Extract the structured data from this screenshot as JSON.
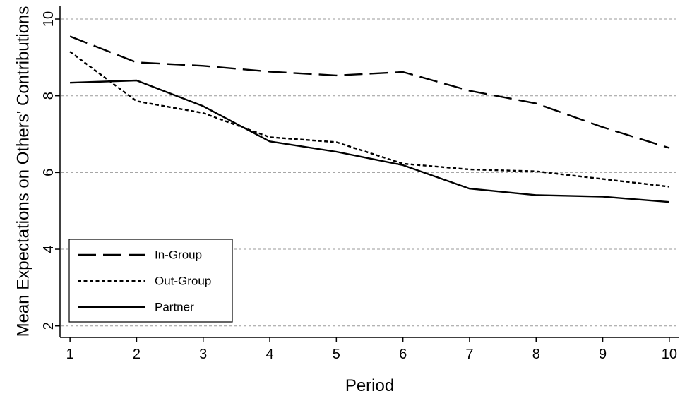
{
  "chart_data": {
    "type": "line",
    "title": "",
    "xlabel": "Period",
    "ylabel": "Mean Expectations on Others' Contributions",
    "x": [
      1,
      2,
      3,
      4,
      5,
      6,
      7,
      8,
      9,
      10
    ],
    "x_ticks": [
      1,
      2,
      3,
      4,
      5,
      6,
      7,
      8,
      9,
      10
    ],
    "y_ticks": [
      2,
      4,
      6,
      8,
      10
    ],
    "xlim": [
      0.85,
      10.15
    ],
    "ylim": [
      1.7,
      10.35
    ],
    "grid": "horizontal dashed",
    "legend_position": "bottom-left",
    "series": [
      {
        "name": "In-Group",
        "style": "long-dash",
        "color": "#000000",
        "values": [
          9.55,
          8.87,
          8.78,
          8.63,
          8.53,
          8.62,
          8.13,
          7.8,
          7.18,
          6.64
        ]
      },
      {
        "name": "Out-Group",
        "style": "short-dash",
        "color": "#000000",
        "values": [
          9.15,
          7.86,
          7.55,
          6.92,
          6.79,
          6.23,
          6.08,
          6.03,
          5.83,
          5.63
        ]
      },
      {
        "name": "Partner",
        "style": "solid",
        "color": "#000000",
        "values": [
          8.34,
          8.4,
          7.73,
          6.81,
          6.54,
          6.19,
          5.58,
          5.41,
          5.37,
          5.23
        ]
      }
    ]
  }
}
